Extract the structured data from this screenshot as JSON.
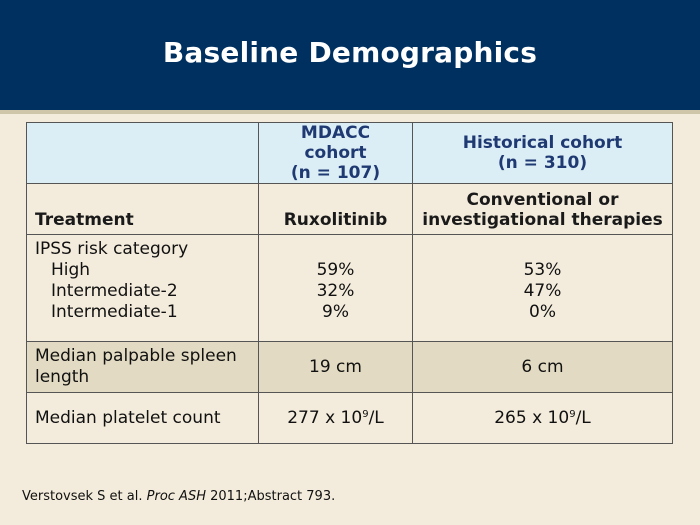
{
  "slide": {
    "title": "Baseline Demographics"
  },
  "table": {
    "header": {
      "col1": "",
      "col2_line1": "MDACC cohort",
      "col2_line2": "(n = 107)",
      "col3_line1": "Historical cohort",
      "col3_line2": "(n = 310)"
    },
    "treatment": {
      "label": "Treatment",
      "mdacc": "Ruxolitinib",
      "historical_line1": "Conventional or",
      "historical_line2": "investigational therapies"
    },
    "ipss": {
      "label": "IPSS risk category",
      "categories": [
        "High",
        "Intermediate-2",
        "Intermediate-1"
      ],
      "mdacc": [
        "59%",
        "32%",
        "9%"
      ],
      "historical": [
        "53%",
        "47%",
        "0%"
      ]
    },
    "spleen": {
      "label_line1": "Median palpable spleen",
      "label_line2": "length",
      "mdacc": "19 cm",
      "historical": "6 cm"
    },
    "platelet": {
      "label": "Median platelet count",
      "mdacc_value": "277 x 10",
      "mdacc_exp": "9",
      "mdacc_unit": "/L",
      "historical_value": "265 x 10",
      "historical_exp": "9",
      "historical_unit": "/L"
    }
  },
  "citation": {
    "authors": "Verstovsek S et al. ",
    "journal": "Proc ASH",
    "rest": " 2011;Abstract 793."
  },
  "colors": {
    "header_bg": "#003060",
    "page_bg": "#f3ecdc",
    "table_head_bg": "#dceef5",
    "table_head_text": "#1f3a73",
    "highlight_row_bg": "#e2dac2"
  }
}
